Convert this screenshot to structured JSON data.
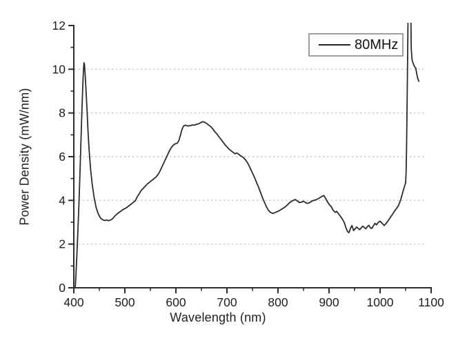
{
  "chart_data": {
    "type": "line",
    "title": "",
    "xlabel": "Wavelength (nm)",
    "ylabel": "Power Density (mW/nm)",
    "xlim": [
      400,
      1100
    ],
    "ylim": [
      0,
      12
    ],
    "x_ticks": [
      400,
      500,
      600,
      700,
      800,
      900,
      1000,
      1100
    ],
    "x_minor_ticks": [
      450,
      550,
      650,
      750,
      850,
      950,
      1050
    ],
    "y_ticks": [
      0,
      2,
      4,
      6,
      8,
      10,
      12
    ],
    "y_minor_ticks": [
      1,
      3,
      5,
      7,
      9,
      11
    ],
    "grid": {
      "y_values": [
        2,
        4,
        6,
        8,
        10
      ],
      "style": "dashed",
      "color": "#bdbdbd"
    },
    "legend_position": "top-right",
    "axis_color": "#2b2b2b",
    "line_color": "#2a2a2a",
    "series": [
      {
        "name": "80MHz",
        "points": [
          [
            403,
            0.05
          ],
          [
            404,
            0.5
          ],
          [
            406,
            1.5
          ],
          [
            408,
            2.6
          ],
          [
            410,
            3.8
          ],
          [
            412,
            5.2
          ],
          [
            414,
            6.7
          ],
          [
            416,
            8.2
          ],
          [
            418,
            9.5
          ],
          [
            419,
            10.0
          ],
          [
            420,
            10.3
          ],
          [
            421,
            10.2
          ],
          [
            422,
            9.85
          ],
          [
            424,
            9.0
          ],
          [
            426,
            8.1
          ],
          [
            428,
            7.1
          ],
          [
            430,
            6.3
          ],
          [
            433,
            5.4
          ],
          [
            436,
            4.75
          ],
          [
            440,
            4.1
          ],
          [
            444,
            3.65
          ],
          [
            448,
            3.38
          ],
          [
            452,
            3.2
          ],
          [
            456,
            3.12
          ],
          [
            460,
            3.08
          ],
          [
            464,
            3.1
          ],
          [
            468,
            3.07
          ],
          [
            472,
            3.1
          ],
          [
            476,
            3.16
          ],
          [
            480,
            3.28
          ],
          [
            484,
            3.36
          ],
          [
            488,
            3.44
          ],
          [
            492,
            3.5
          ],
          [
            496,
            3.58
          ],
          [
            500,
            3.62
          ],
          [
            504,
            3.68
          ],
          [
            508,
            3.75
          ],
          [
            512,
            3.82
          ],
          [
            516,
            3.9
          ],
          [
            520,
            3.97
          ],
          [
            524,
            4.15
          ],
          [
            528,
            4.3
          ],
          [
            532,
            4.45
          ],
          [
            536,
            4.55
          ],
          [
            540,
            4.65
          ],
          [
            544,
            4.75
          ],
          [
            548,
            4.82
          ],
          [
            552,
            4.9
          ],
          [
            556,
            4.97
          ],
          [
            560,
            5.05
          ],
          [
            564,
            5.15
          ],
          [
            568,
            5.3
          ],
          [
            572,
            5.5
          ],
          [
            576,
            5.7
          ],
          [
            580,
            5.9
          ],
          [
            584,
            6.1
          ],
          [
            588,
            6.3
          ],
          [
            592,
            6.45
          ],
          [
            596,
            6.55
          ],
          [
            600,
            6.6
          ],
          [
            603,
            6.62
          ],
          [
            606,
            6.75
          ],
          [
            609,
            7.0
          ],
          [
            612,
            7.25
          ],
          [
            615,
            7.4
          ],
          [
            618,
            7.44
          ],
          [
            621,
            7.42
          ],
          [
            624,
            7.4
          ],
          [
            628,
            7.42
          ],
          [
            632,
            7.45
          ],
          [
            636,
            7.44
          ],
          [
            640,
            7.48
          ],
          [
            644,
            7.5
          ],
          [
            648,
            7.55
          ],
          [
            652,
            7.6
          ],
          [
            656,
            7.58
          ],
          [
            660,
            7.52
          ],
          [
            664,
            7.45
          ],
          [
            668,
            7.38
          ],
          [
            672,
            7.28
          ],
          [
            676,
            7.15
          ],
          [
            680,
            7.05
          ],
          [
            684,
            6.92
          ],
          [
            688,
            6.8
          ],
          [
            692,
            6.68
          ],
          [
            696,
            6.55
          ],
          [
            700,
            6.45
          ],
          [
            704,
            6.35
          ],
          [
            708,
            6.27
          ],
          [
            712,
            6.2
          ],
          [
            716,
            6.13
          ],
          [
            719,
            6.17
          ],
          [
            722,
            6.13
          ],
          [
            726,
            6.05
          ],
          [
            730,
            6.0
          ],
          [
            734,
            5.92
          ],
          [
            738,
            5.8
          ],
          [
            742,
            5.65
          ],
          [
            746,
            5.45
          ],
          [
            750,
            5.25
          ],
          [
            754,
            5.05
          ],
          [
            758,
            4.82
          ],
          [
            762,
            4.6
          ],
          [
            766,
            4.35
          ],
          [
            770,
            4.1
          ],
          [
            774,
            3.88
          ],
          [
            778,
            3.68
          ],
          [
            782,
            3.52
          ],
          [
            786,
            3.44
          ],
          [
            790,
            3.4
          ],
          [
            794,
            3.44
          ],
          [
            798,
            3.48
          ],
          [
            802,
            3.52
          ],
          [
            806,
            3.58
          ],
          [
            810,
            3.64
          ],
          [
            814,
            3.7
          ],
          [
            818,
            3.78
          ],
          [
            822,
            3.88
          ],
          [
            826,
            3.95
          ],
          [
            830,
            4.0
          ],
          [
            834,
            4.04
          ],
          [
            838,
            3.97
          ],
          [
            842,
            3.9
          ],
          [
            846,
            3.92
          ],
          [
            850,
            3.96
          ],
          [
            854,
            3.9
          ],
          [
            858,
            3.86
          ],
          [
            862,
            3.9
          ],
          [
            866,
            3.96
          ],
          [
            870,
            4.0
          ],
          [
            874,
            4.02
          ],
          [
            878,
            4.07
          ],
          [
            882,
            4.12
          ],
          [
            886,
            4.18
          ],
          [
            890,
            4.22
          ],
          [
            893,
            4.1
          ],
          [
            896,
            3.97
          ],
          [
            900,
            3.82
          ],
          [
            904,
            3.72
          ],
          [
            908,
            3.55
          ],
          [
            912,
            3.45
          ],
          [
            915,
            3.5
          ],
          [
            918,
            3.4
          ],
          [
            922,
            3.28
          ],
          [
            926,
            3.15
          ],
          [
            930,
            2.98
          ],
          [
            933,
            2.75
          ],
          [
            936,
            2.58
          ],
          [
            939,
            2.52
          ],
          [
            942,
            2.72
          ],
          [
            945,
            2.85
          ],
          [
            948,
            2.62
          ],
          [
            951,
            2.7
          ],
          [
            954,
            2.78
          ],
          [
            957,
            2.72
          ],
          [
            960,
            2.66
          ],
          [
            963,
            2.74
          ],
          [
            966,
            2.82
          ],
          [
            969,
            2.76
          ],
          [
            972,
            2.7
          ],
          [
            975,
            2.8
          ],
          [
            978,
            2.86
          ],
          [
            981,
            2.74
          ],
          [
            984,
            2.72
          ],
          [
            987,
            2.84
          ],
          [
            990,
            2.95
          ],
          [
            993,
            2.88
          ],
          [
            996,
            2.98
          ],
          [
            1000,
            3.05
          ],
          [
            1004,
            2.95
          ],
          [
            1008,
            2.85
          ],
          [
            1012,
            2.95
          ],
          [
            1016,
            3.08
          ],
          [
            1020,
            3.22
          ],
          [
            1024,
            3.35
          ],
          [
            1028,
            3.5
          ],
          [
            1032,
            3.62
          ],
          [
            1036,
            3.76
          ],
          [
            1040,
            4.0
          ],
          [
            1043,
            4.25
          ],
          [
            1046,
            4.5
          ],
          [
            1048,
            4.65
          ],
          [
            1050,
            4.8
          ],
          [
            1051,
            5.3
          ],
          [
            1052,
            6.6
          ],
          [
            1053,
            8.6
          ],
          [
            1054,
            10.6
          ],
          [
            1055,
            13.0
          ],
          [
            1060,
            13.0
          ],
          [
            1061,
            11.0
          ],
          [
            1062,
            10.6
          ],
          [
            1063,
            10.4
          ],
          [
            1065,
            10.25
          ],
          [
            1067,
            10.15
          ],
          [
            1068,
            10.1
          ],
          [
            1070,
            10.05
          ],
          [
            1071,
            9.9
          ],
          [
            1073,
            9.65
          ],
          [
            1075,
            9.5
          ],
          [
            1076,
            9.45
          ]
        ]
      }
    ]
  }
}
